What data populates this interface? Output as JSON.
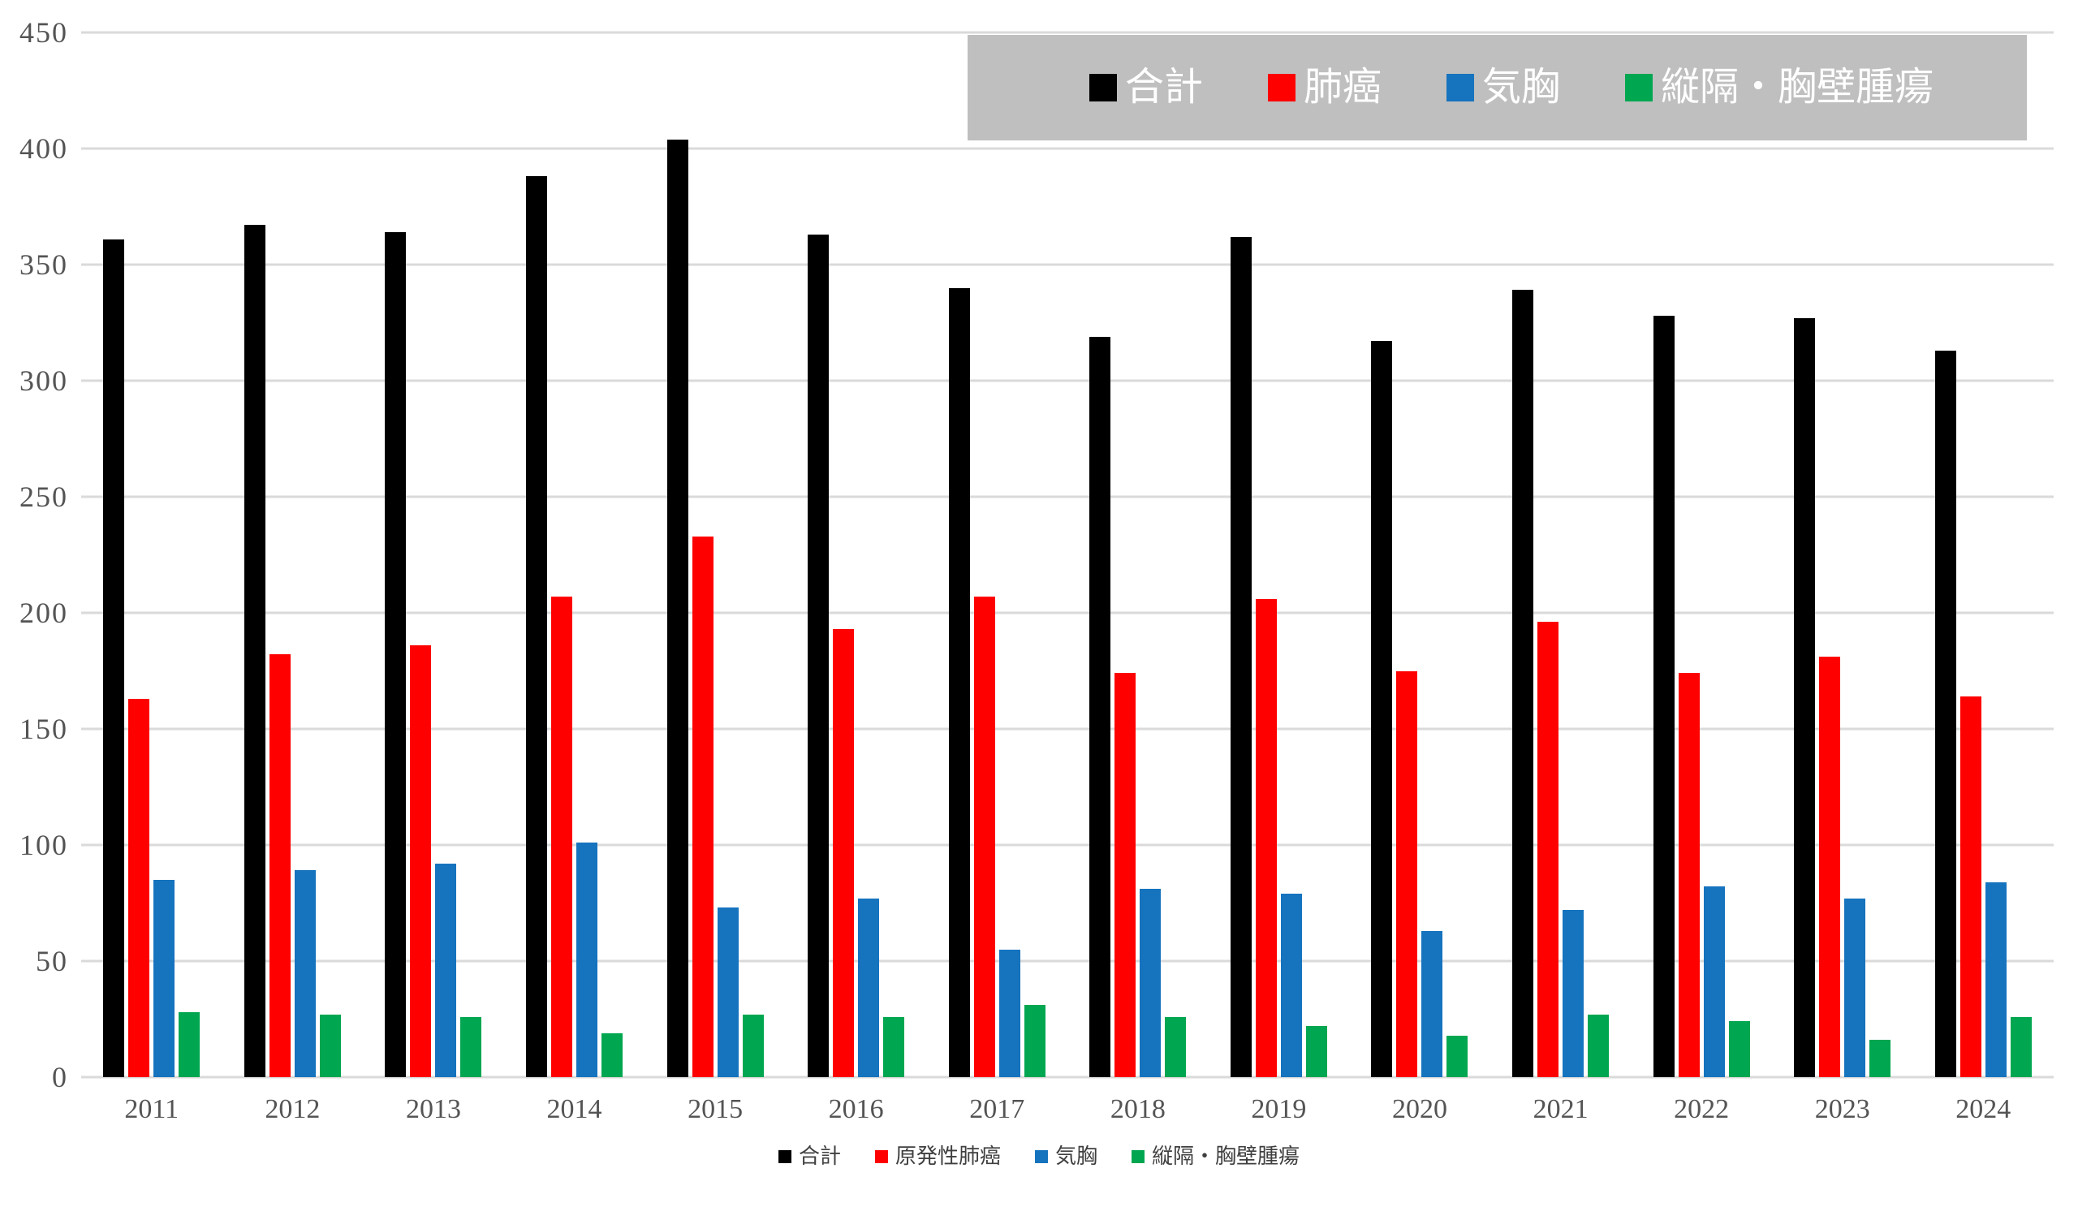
{
  "chart_data": {
    "type": "bar",
    "title": "",
    "categories": [
      "2011",
      "2012",
      "2013",
      "2014",
      "2015",
      "2016",
      "2017",
      "2018",
      "2019",
      "2020",
      "2021",
      "2022",
      "2023",
      "2024"
    ],
    "series": [
      {
        "key": "total",
        "name": "合計",
        "color": "#000000",
        "values": [
          361,
          367,
          364,
          388,
          404,
          363,
          340,
          319,
          362,
          317,
          339,
          328,
          327,
          313
        ]
      },
      {
        "key": "lung-cancer",
        "name": "肺癌",
        "color": "#FF0000",
        "values": [
          163,
          182,
          186,
          207,
          233,
          193,
          207,
          174,
          206,
          175,
          196,
          174,
          181,
          164
        ]
      },
      {
        "key": "pneumothorax",
        "name": "気胸",
        "color": "#1673BE",
        "values": [
          85,
          89,
          92,
          101,
          73,
          77,
          55,
          81,
          79,
          63,
          72,
          82,
          77,
          84
        ]
      },
      {
        "key": "mediastinal-chest-wall-tumor",
        "name": "縦隔・胸壁腫瘍",
        "color": "#00A650",
        "values": [
          28,
          27,
          26,
          19,
          27,
          26,
          31,
          26,
          22,
          18,
          27,
          24,
          16,
          26
        ]
      }
    ],
    "xlabel": "",
    "ylabel": "",
    "ylim": [
      0,
      450
    ],
    "ytick_interval": 50,
    "grid": true,
    "legend_top": {
      "position": "top-right",
      "background": "#BFBFBF",
      "text_color": "#FFFFFF",
      "labels": [
        "合計",
        "肺癌",
        "気胸",
        "縦隔・胸壁腫瘍"
      ]
    },
    "legend_bottom": {
      "position": "bottom-center",
      "text_color": "#3F3F3F",
      "labels": [
        "合計",
        "原発性肺癌",
        "気胸",
        "縦隔・胸壁腫瘍"
      ]
    }
  },
  "style": {
    "background": "#FFFFFF",
    "gridline_color": "#DADADA",
    "tick_label_color": "#545454"
  }
}
